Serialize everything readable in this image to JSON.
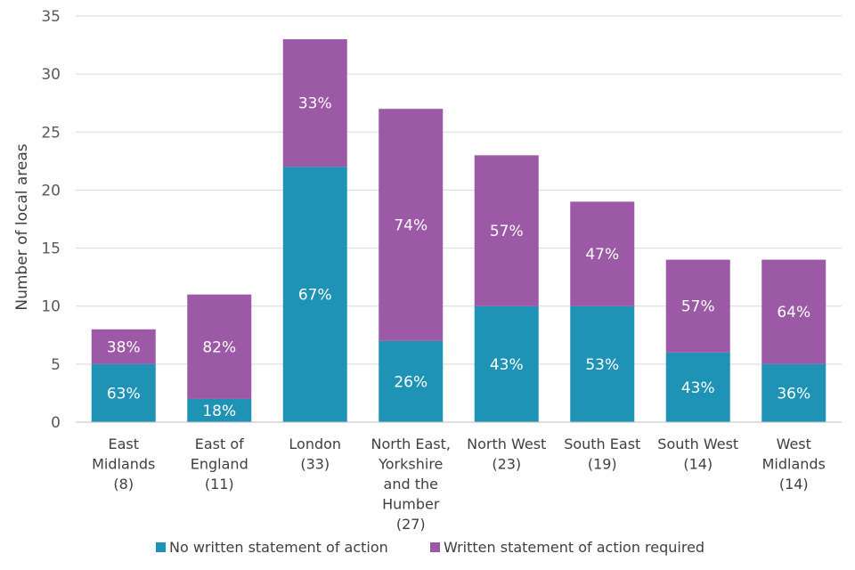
{
  "chart_data": {
    "type": "bar",
    "stacked": true,
    "title": "",
    "xlabel": "",
    "ylabel": "Number of local areas",
    "ylim": [
      0,
      35
    ],
    "yticks": [
      0,
      5,
      10,
      15,
      20,
      25,
      30,
      35
    ],
    "yticks_text": [
      "0",
      "5",
      "10",
      "15",
      "20",
      "25",
      "30",
      "35"
    ],
    "grid": true,
    "legend_position": "bottom",
    "categories": [
      [
        "East",
        "Midlands",
        "(8)"
      ],
      [
        "East of",
        "England",
        "(11)"
      ],
      [
        "London",
        "(33)"
      ],
      [
        "North East,",
        "Yorkshire",
        "and the",
        "Humber",
        "(27)"
      ],
      [
        "North West",
        "(23)"
      ],
      [
        "South East",
        "(19)"
      ],
      [
        "South West",
        "(14)"
      ],
      [
        "West",
        "Midlands",
        "(14)"
      ]
    ],
    "series": [
      {
        "name": "No written statement of action",
        "color": "#1f93b5",
        "values": [
          5,
          2,
          22,
          7,
          10,
          10,
          6,
          5
        ],
        "labels": [
          "63%",
          "18%",
          "67%",
          "26%",
          "43%",
          "53%",
          "43%",
          "36%"
        ]
      },
      {
        "name": "Written statement of action required",
        "color": "#9b59a6",
        "values": [
          3,
          9,
          11,
          20,
          13,
          9,
          8,
          9
        ],
        "labels": [
          "38%",
          "82%",
          "33%",
          "74%",
          "57%",
          "47%",
          "57%",
          "64%"
        ]
      }
    ]
  }
}
